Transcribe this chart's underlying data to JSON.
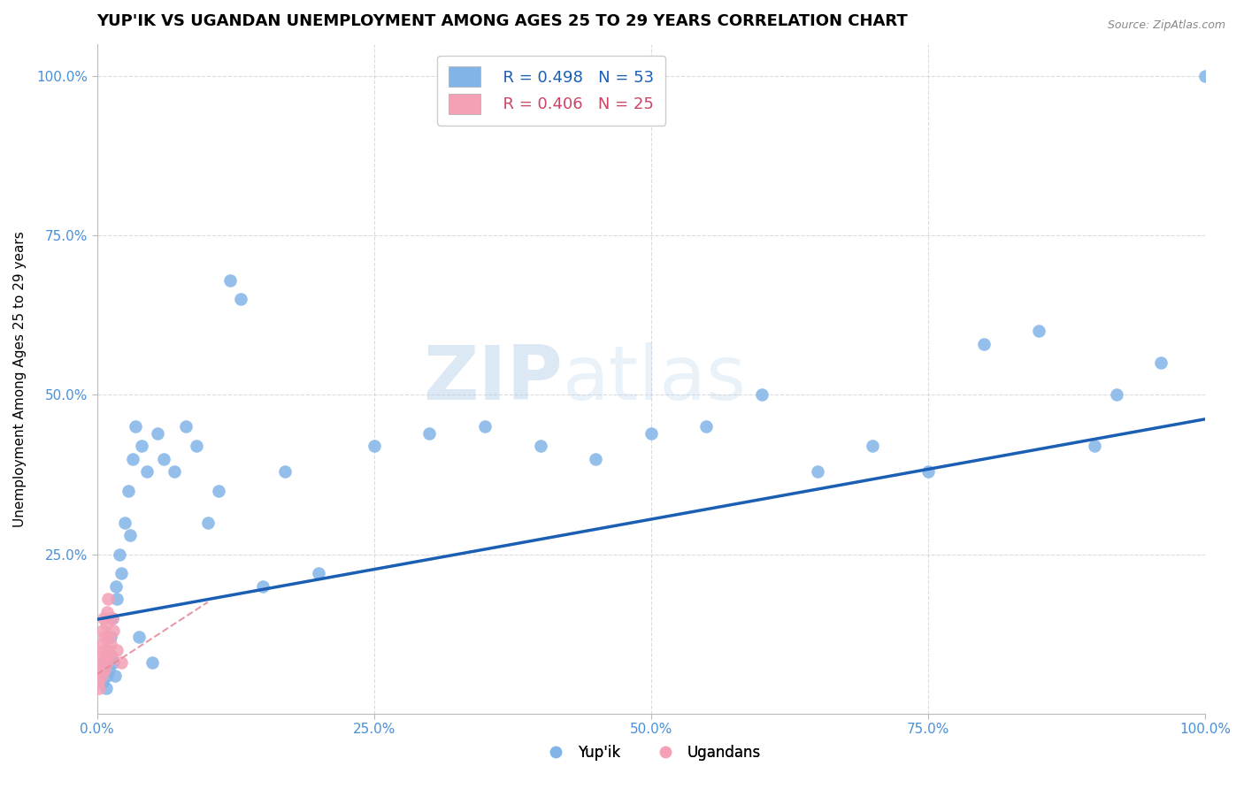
{
  "title": "YUP'IK VS UGANDAN UNEMPLOYMENT AMONG AGES 25 TO 29 YEARS CORRELATION CHART",
  "source": "Source: ZipAtlas.com",
  "ylabel": "Unemployment Among Ages 25 to 29 years",
  "xlabel": "",
  "xlim": [
    0.0,
    1.0
  ],
  "ylim": [
    0.0,
    1.05
  ],
  "xticks": [
    0.0,
    0.25,
    0.5,
    0.75,
    1.0
  ],
  "yticks": [
    0.25,
    0.5,
    0.75,
    1.0
  ],
  "xticklabels": [
    "0.0%",
    "25.0%",
    "50.0%",
    "75.0%",
    "100.0%"
  ],
  "yticklabels": [
    "25.0%",
    "50.0%",
    "75.0%",
    "100.0%"
  ],
  "legend_r1": "R = 0.498",
  "legend_n1": "N = 53",
  "legend_r2": "R = 0.406",
  "legend_n2": "N = 25",
  "blue_color": "#82b4e8",
  "pink_color": "#f4a0b5",
  "blue_line_color": "#1a5fb4",
  "pink_line_color": "#e08898",
  "watermark_zip": "ZIP",
  "watermark_atlas": "atlas",
  "title_fontsize": 13,
  "label_fontsize": 11,
  "tick_fontsize": 11,
  "yupik_x": [
    0.005,
    0.007,
    0.008,
    0.009,
    0.01,
    0.011,
    0.012,
    0.013,
    0.014,
    0.015,
    0.016,
    0.017,
    0.018,
    0.02,
    0.022,
    0.025,
    0.028,
    0.03,
    0.032,
    0.035,
    0.038,
    0.04,
    0.045,
    0.05,
    0.055,
    0.06,
    0.07,
    0.08,
    0.09,
    0.1,
    0.11,
    0.12,
    0.13,
    0.15,
    0.17,
    0.2,
    0.25,
    0.3,
    0.35,
    0.4,
    0.45,
    0.5,
    0.55,
    0.6,
    0.65,
    0.7,
    0.75,
    0.8,
    0.85,
    0.9,
    0.92,
    0.96,
    1.0
  ],
  "yupik_y": [
    0.05,
    0.08,
    0.04,
    0.06,
    0.1,
    0.07,
    0.12,
    0.09,
    0.15,
    0.08,
    0.06,
    0.2,
    0.18,
    0.25,
    0.22,
    0.3,
    0.35,
    0.28,
    0.4,
    0.45,
    0.12,
    0.42,
    0.38,
    0.08,
    0.44,
    0.4,
    0.38,
    0.45,
    0.42,
    0.3,
    0.35,
    0.68,
    0.65,
    0.2,
    0.38,
    0.22,
    0.42,
    0.44,
    0.45,
    0.42,
    0.4,
    0.44,
    0.45,
    0.5,
    0.38,
    0.42,
    0.38,
    0.58,
    0.6,
    0.42,
    0.5,
    0.55,
    1.0
  ],
  "ugandan_x": [
    0.001,
    0.002,
    0.003,
    0.003,
    0.004,
    0.004,
    0.005,
    0.005,
    0.006,
    0.006,
    0.007,
    0.007,
    0.008,
    0.008,
    0.009,
    0.009,
    0.01,
    0.01,
    0.011,
    0.012,
    0.013,
    0.014,
    0.015,
    0.018,
    0.022
  ],
  "ugandan_y": [
    0.05,
    0.04,
    0.07,
    0.09,
    0.06,
    0.11,
    0.08,
    0.13,
    0.1,
    0.15,
    0.07,
    0.12,
    0.09,
    0.14,
    0.08,
    0.16,
    0.1,
    0.18,
    0.12,
    0.11,
    0.09,
    0.15,
    0.13,
    0.1,
    0.08
  ],
  "blue_regline_x": [
    0.0,
    1.0
  ],
  "blue_regline_y": [
    0.148,
    0.462
  ],
  "pink_regline_x": [
    0.0,
    0.1
  ],
  "pink_regline_y": [
    0.062,
    0.175
  ]
}
